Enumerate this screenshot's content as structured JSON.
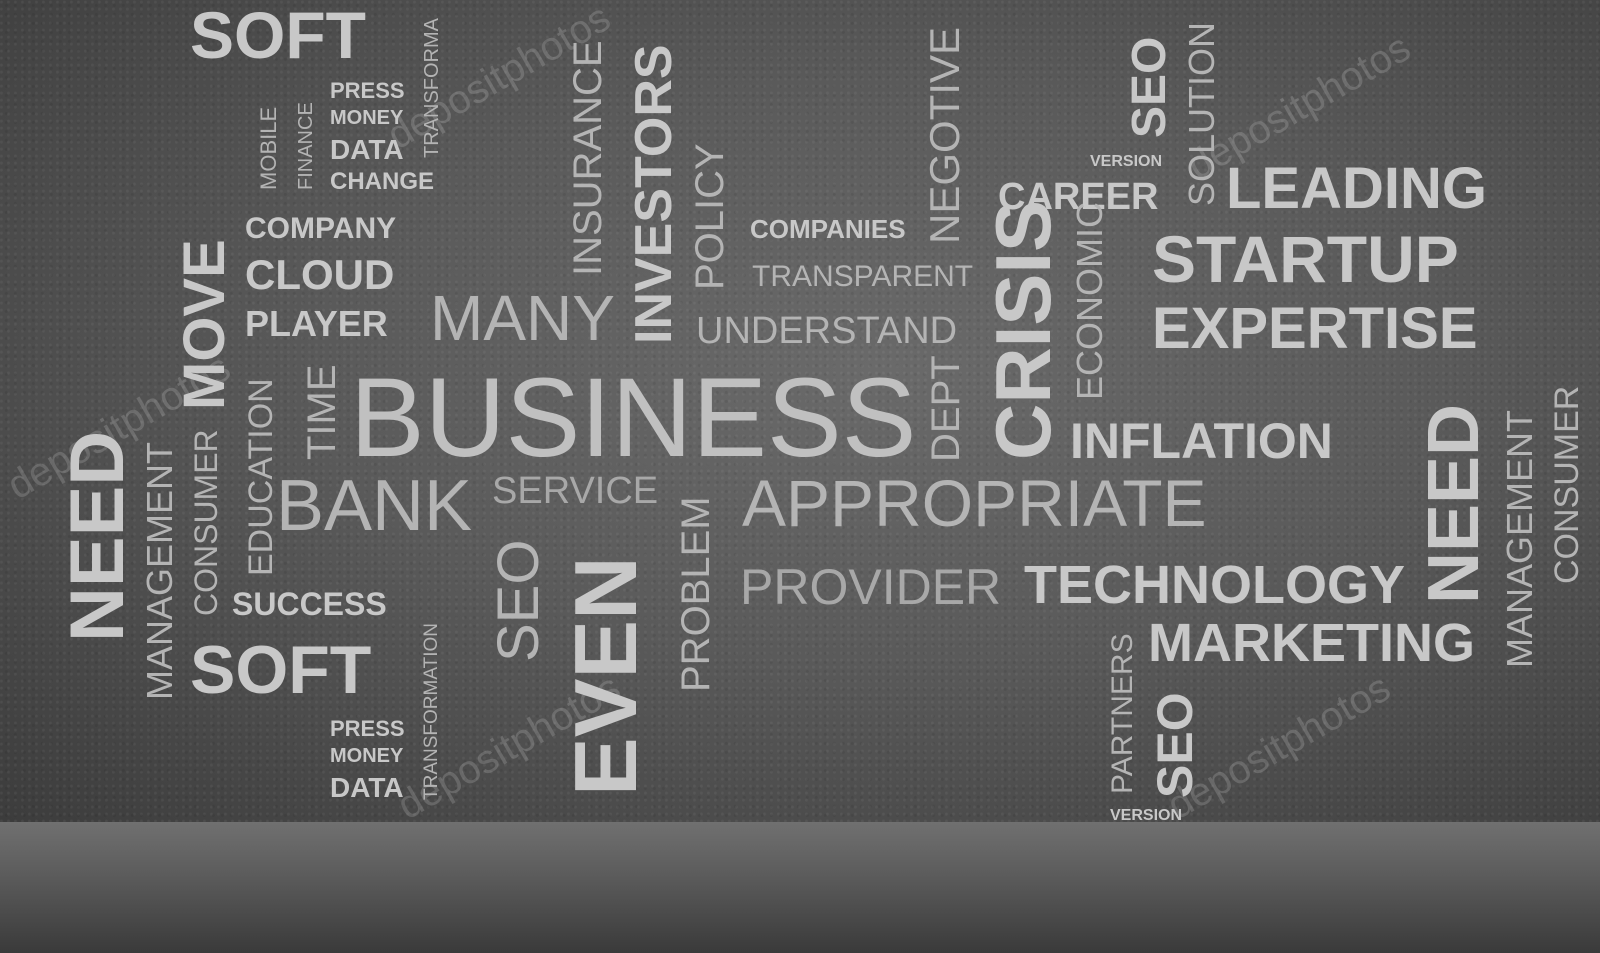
{
  "words": {
    "soft_top": "SOFT",
    "mobile": "MOBILE",
    "finance": "FINANCE",
    "press_top": "PRESS",
    "money_top": "MONEY",
    "data_top": "DATA",
    "change": "CHANGE",
    "transform_top": "TRANSFORMA",
    "company": "COMPANY",
    "cloud": "CLOUD",
    "player": "PLAYER",
    "move": "MOVE",
    "insurance": "INSURANCE",
    "investors": "INVESTORS",
    "policy": "POLICY",
    "companies": "COMPANIES",
    "transparent": "TRANSPARENT",
    "understand": "UNDERSTAND",
    "many": "MANY",
    "negotive": "NEGOTIVE",
    "seo_top": "SEO",
    "version_top": "VERSION",
    "solution": "SOLUTION",
    "career": "CAREER",
    "leading": "LEADING",
    "startup": "STARTUP",
    "expertise": "EXPERTISE",
    "economic": "ECONOMIC",
    "crisis": "CRISIS",
    "dept": "DEPT",
    "business": "BUSINESS",
    "time": "TIME",
    "education": "EDUCATION",
    "consumer_left": "CONSUMER",
    "management_left": "MANAGEMENT",
    "need_left": "NEED",
    "bank": "BANK",
    "service": "SERVICE",
    "appropriate": "APPROPRIATE",
    "inflation": "INFLATION",
    "need_right": "NEED",
    "management_right": "MANAGEMENT",
    "consumer_right": "CONSUMER",
    "success": "SUCCESS",
    "seo_mid": "SEO",
    "even": "EVEN",
    "problem": "PROBLEM",
    "provider": "PROVIDER",
    "technology": "TECHNOLOGY",
    "marketing": "MARKETING",
    "soft_bottom": "SOFT",
    "transformation": "TRANSFORMATION",
    "press_bottom": "PRESS",
    "money_bottom": "MONEY",
    "data_bottom": "DATA",
    "partners": "PARTNERS",
    "seo_bottom": "SEO",
    "version_bottom": "VERSION"
  },
  "watermark": "depositphotos",
  "colors": {
    "text": "#c8c8c8",
    "wall": "#5a5a5a",
    "floor": "#5c5c5c"
  }
}
